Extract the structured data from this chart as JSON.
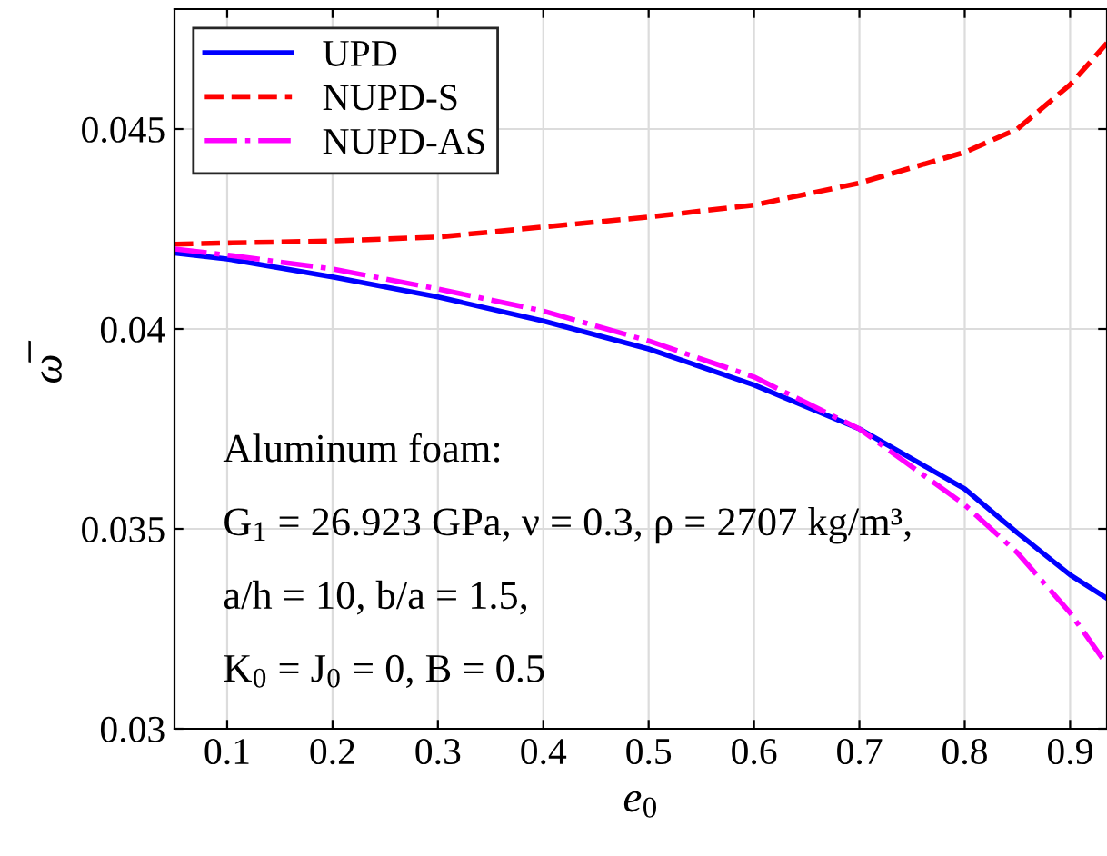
{
  "chart_data": {
    "type": "line",
    "xlabel": "e$_{0}$",
    "ylabel": "ω̅",
    "x": [
      0.05,
      0.1,
      0.2,
      0.3,
      0.4,
      0.5,
      0.6,
      0.7,
      0.8,
      0.85,
      0.9,
      0.935
    ],
    "series": [
      {
        "name": "UPD",
        "color": "#0000ff",
        "line_style": "solid",
        "values": [
          0.0419,
          0.04175,
          0.0413,
          0.0408,
          0.0402,
          0.0395,
          0.0386,
          0.0375,
          0.036,
          0.0349,
          0.03385,
          0.03326
        ]
      },
      {
        "name": "NUPD-S",
        "color": "#ff0000",
        "line_style": "dashed",
        "values": [
          0.04212,
          0.04215,
          0.0422,
          0.0423,
          0.04255,
          0.0428,
          0.0431,
          0.04365,
          0.04442,
          0.045,
          0.04611,
          0.04715
        ]
      },
      {
        "name": "NUPD-AS",
        "color": "#ff00ff",
        "line_style": "dashdot",
        "values": [
          0.042,
          0.04185,
          0.0415,
          0.041,
          0.04045,
          0.0397,
          0.0388,
          0.0375,
          0.0356,
          0.0344,
          0.0329,
          0.0316
        ]
      }
    ],
    "xlim": [
      0.05,
      0.935
    ],
    "ylim": [
      0.03,
      0.048
    ],
    "xticks": [
      0.1,
      0.2,
      0.3,
      0.4,
      0.5,
      0.6,
      0.7,
      0.8,
      0.9
    ],
    "yticks": [
      0.03,
      0.035,
      0.04,
      0.045
    ],
    "grid": true,
    "legend": "top left",
    "annotations": [
      "Aluminum foam:",
      "G$_{1}$ = 26.923 GPa, ν = 0.3, ρ = 2707 kg/m³,",
      "a/h = 10, b/a = 1.5,",
      "K$_{0}$ = J$_{0}$ = 0, B = 0.5"
    ]
  }
}
